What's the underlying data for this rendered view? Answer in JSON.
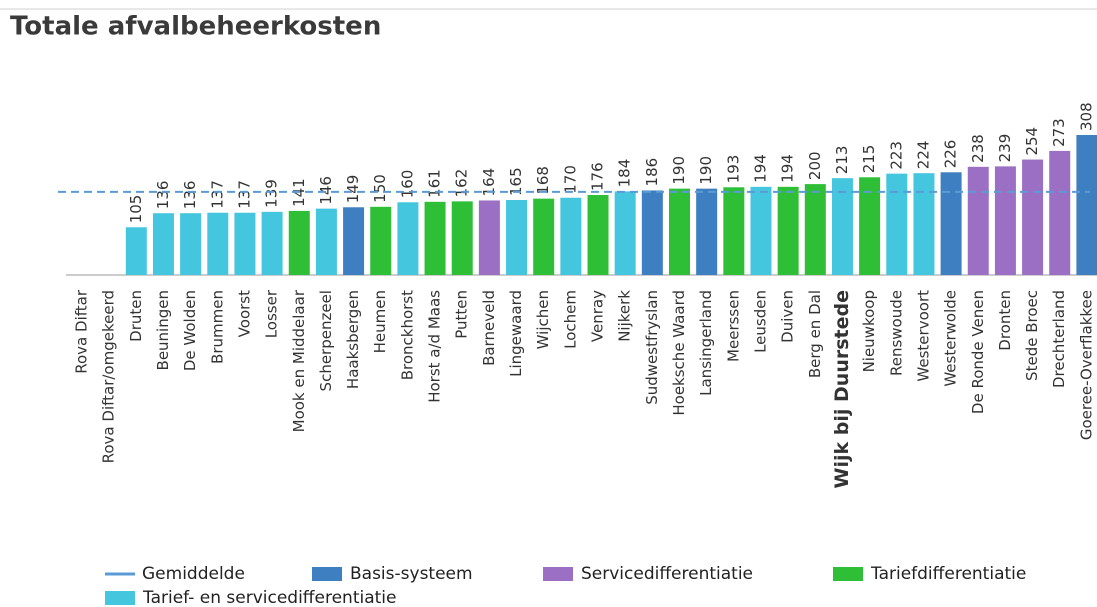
{
  "chart_data": {
    "type": "bar",
    "title": "Totale afvalbeheerkosten",
    "categories": [
      "Rova Diftar",
      "Rova Diftar/omgekeerd",
      "Druten",
      "Beuningen",
      "De Wolden",
      "Brummen",
      "Voorst",
      "Losser",
      "Mook en Middelaar",
      "Scherpenzeel",
      "Haaksbergen",
      "Heumen",
      "Bronckhorst",
      "Horst a/d Maas",
      "Putten",
      "Barneveld",
      "Lingewaard",
      "Wijchen",
      "Lochem",
      "Venray",
      "Nijkerk",
      "Sudwestfryslan",
      "Hoeksche Waard",
      "Lansingerland",
      "Meerssen",
      "Leusden",
      "Duiven",
      "Berg en Dal",
      "Wijk bij Duurstede",
      "Nieuwkoop",
      "Renswoude",
      "Westervoort",
      "Westerwolde",
      "De Ronde Venen",
      "Dronten",
      "Stede Broec",
      "Drechterland",
      "Goeree-Overflakkee"
    ],
    "values": [
      null,
      null,
      105,
      136,
      136,
      137,
      137,
      139,
      141,
      146,
      149,
      150,
      160,
      161,
      162,
      164,
      165,
      168,
      170,
      176,
      184,
      186,
      190,
      190,
      193,
      194,
      194,
      200,
      213,
      215,
      223,
      224,
      226,
      238,
      239,
      254,
      273,
      308
    ],
    "systems": [
      null,
      null,
      3,
      3,
      3,
      3,
      3,
      3,
      2,
      3,
      0,
      2,
      3,
      2,
      2,
      1,
      3,
      2,
      3,
      2,
      3,
      0,
      2,
      0,
      2,
      3,
      2,
      2,
      3,
      2,
      3,
      3,
      0,
      1,
      1,
      1,
      1,
      0
    ],
    "legend": [
      {
        "name": "Basis-systeem",
        "color": "#3d7fc0"
      },
      {
        "name": "Servicedifferentiatie",
        "color": "#9b6fc3"
      },
      {
        "name": "Tariefdifferentiatie",
        "color": "#2ebf37"
      },
      {
        "name": "Tarief- en servicedifferentiatie",
        "color": "#45c6df"
      }
    ],
    "average": {
      "name": "Gemiddelde",
      "value": 183,
      "color": "#5b9bd5"
    },
    "highlight_index": 28
  }
}
